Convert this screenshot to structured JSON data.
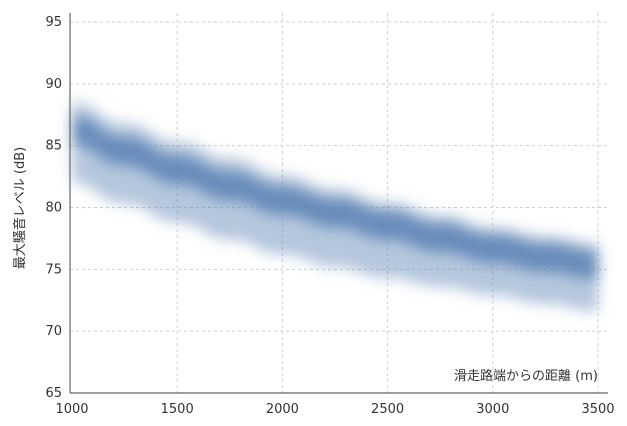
{
  "chart_data": {
    "type": "area",
    "ylabel": "最大騒音レベル (dB)",
    "xlabel": "滑走路端からの距離 (m)",
    "xlim": [
      1000,
      3500
    ],
    "ylim": [
      65,
      95
    ],
    "x_ticks": [
      "1000",
      "1500",
      "2000",
      "2500",
      "3000",
      "3500"
    ],
    "y_ticks": [
      "65",
      "70",
      "75",
      "80",
      "85",
      "90",
      "95"
    ],
    "grid": true,
    "band_color": "#5b82b4",
    "x": [
      1000,
      1250,
      1500,
      1750,
      2000,
      2250,
      2500,
      2750,
      3000,
      3250,
      3500
    ],
    "center": [
      86.5,
      84.8,
      83.3,
      82.0,
      80.8,
      79.8,
      78.8,
      77.8,
      76.9,
      76.2,
      75.6
    ],
    "upper": [
      88.5,
      86.8,
      85.3,
      84.0,
      82.6,
      81.5,
      80.4,
      79.4,
      78.4,
      77.7,
      77.1
    ],
    "lower": [
      82.0,
      80.3,
      78.8,
      77.4,
      76.2,
      75.2,
      74.3,
      73.6,
      72.9,
      72.2,
      71.6
    ]
  }
}
